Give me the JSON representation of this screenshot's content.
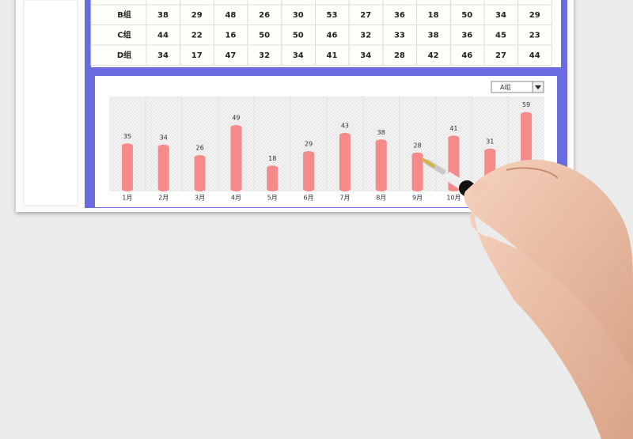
{
  "table": {
    "rows": [
      [
        "B组",
        38,
        29,
        48,
        26,
        30,
        53,
        27,
        36,
        18,
        50,
        34,
        29
      ],
      [
        "C组",
        44,
        22,
        16,
        50,
        50,
        46,
        32,
        33,
        38,
        36,
        45,
        23
      ],
      [
        "D组",
        34,
        17,
        47,
        32,
        34,
        41,
        34,
        28,
        42,
        46,
        27,
        44
      ]
    ]
  },
  "chart_data": {
    "type": "bar",
    "selector": "A组",
    "categories": [
      "1月",
      "2月",
      "3月",
      "4月",
      "5月",
      "6月",
      "7月",
      "8月",
      "9月",
      "10月",
      null,
      null
    ],
    "values": [
      35,
      34,
      26,
      49,
      18,
      29,
      43,
      38,
      28,
      41,
      31,
      59
    ],
    "color": "#f48a8a"
  }
}
